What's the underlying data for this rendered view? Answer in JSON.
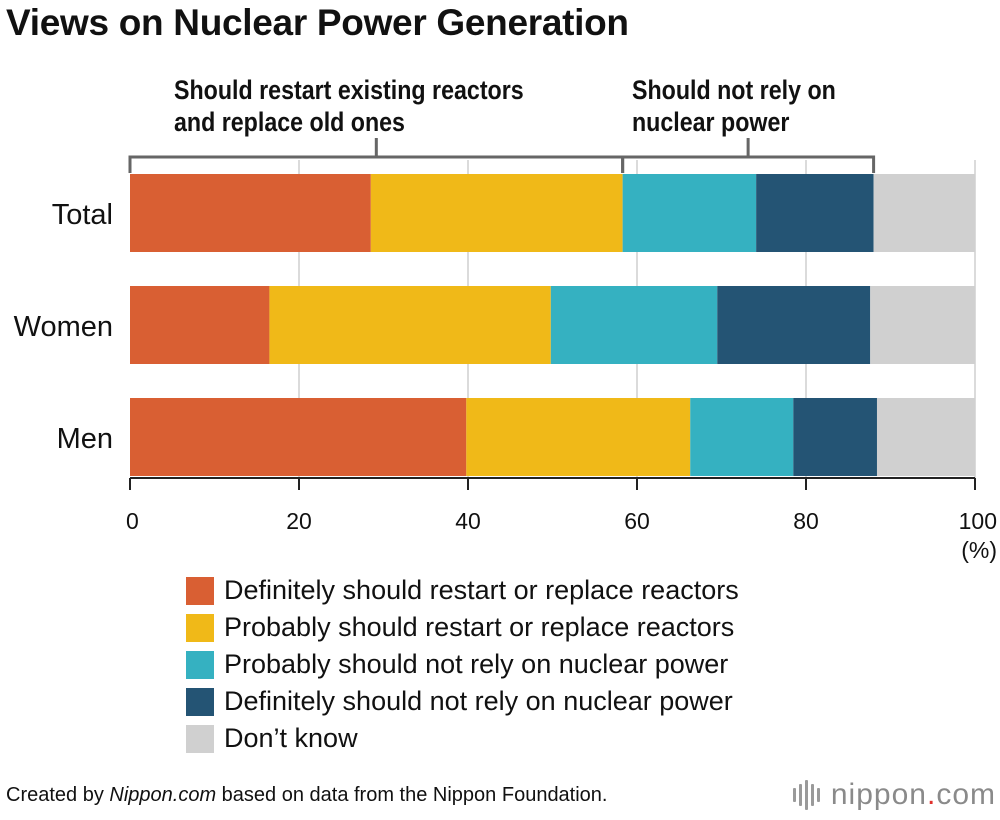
{
  "chart_data": {
    "type": "bar",
    "orientation": "horizontal",
    "stacked": true,
    "title": "Views on Nuclear Power Generation",
    "categories": [
      "Total",
      "Women",
      "Men"
    ],
    "series": [
      {
        "name": "Definitely should restart or replace reactors",
        "color": "#d95f33",
        "values": [
          28.5,
          16.5,
          39.8
        ]
      },
      {
        "name": "Probably should restart or replace reactors",
        "color": "#f0b918",
        "values": [
          29.8,
          33.3,
          26.5
        ]
      },
      {
        "name": "Probably should not rely on nuclear power",
        "color": "#35b1c1",
        "values": [
          15.8,
          19.7,
          12.2
        ]
      },
      {
        "name": "Definitely should not rely on nuclear power",
        "color": "#245474",
        "values": [
          13.9,
          18.1,
          9.9
        ]
      },
      {
        "name": "Don’t know",
        "color": "#d0d0d0",
        "values": [
          12.0,
          12.4,
          11.6
        ]
      }
    ],
    "xlim": [
      0,
      100
    ],
    "xticks": [
      "0",
      "20",
      "40",
      "60",
      "80",
      "100"
    ],
    "x_unit": "(%)",
    "grid": true,
    "legend_position": "bottom",
    "brackets": [
      {
        "lines": [
          "Should restart existing reactors",
          "and replace old ones"
        ],
        "range": [
          0,
          58.3
        ]
      },
      {
        "lines": [
          "Should not rely on",
          "nuclear power"
        ],
        "range": [
          58.3,
          88.0
        ]
      }
    ]
  },
  "footer": {
    "prefix": "Created by ",
    "source_italic": "Nippon.com",
    "suffix": " based on data from the Nippon Foundation."
  },
  "logo": {
    "name": "nippon",
    "dot": ".",
    "tld": "com"
  }
}
